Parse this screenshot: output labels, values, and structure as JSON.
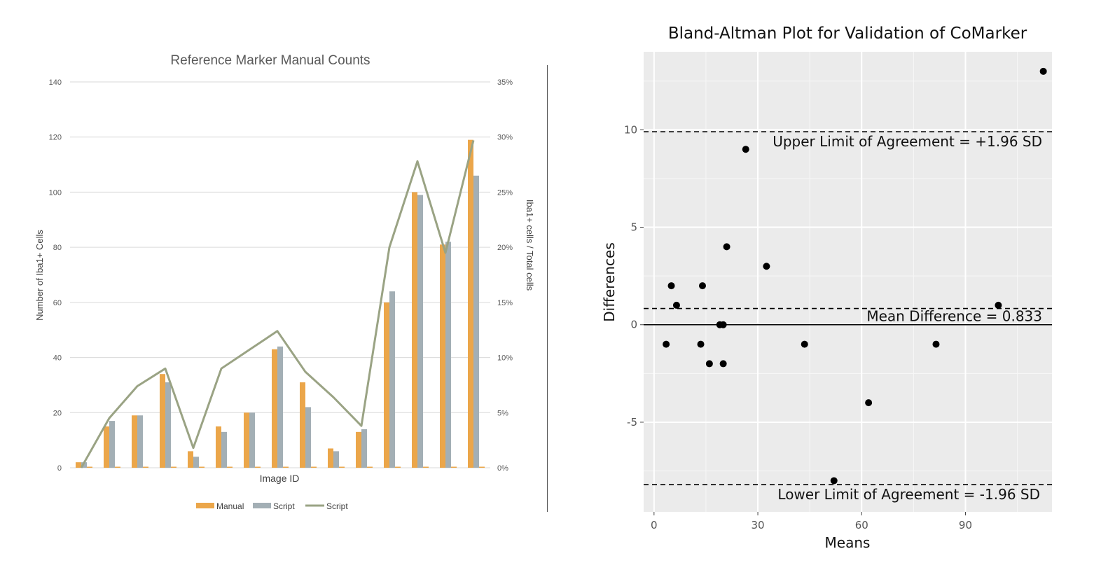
{
  "chart_data": [
    {
      "type": "bar",
      "title": "Reference Marker Manual Counts",
      "xlabel": "Image ID",
      "ylabel": "Number of Iba1+ Cells",
      "y2label": "Iba1+ cells / Total cells",
      "ylim": [
        0,
        140
      ],
      "y2lim": [
        0,
        0.35
      ],
      "yticks": [
        "0",
        "20",
        "40",
        "60",
        "80",
        "100",
        "120",
        "140"
      ],
      "y2ticks": [
        "0%",
        "5%",
        "10%",
        "15%",
        "20%",
        "25%",
        "30%",
        "35%"
      ],
      "grid": "horizontal",
      "legend_position": "bottom",
      "n_categories": 15,
      "series": [
        {
          "name": "Manual",
          "type": "bar",
          "color": "#eba64a",
          "values": [
            2,
            15,
            19,
            34,
            6,
            15,
            20,
            43,
            31,
            7,
            13,
            60,
            100,
            81,
            119
          ]
        },
        {
          "name": "Script",
          "type": "bar",
          "color": "#a3afb5",
          "values": [
            2,
            17,
            19,
            31,
            4,
            13,
            20,
            44,
            22,
            6,
            14,
            64,
            99,
            82,
            106
          ]
        },
        {
          "name": "Script",
          "type": "line",
          "axis": "secondary",
          "color": "#9aa384",
          "values": [
            0.0,
            0.045,
            0.074,
            0.09,
            0.018,
            0.09,
            0.107,
            0.124,
            0.087,
            0.064,
            0.038,
            0.2,
            0.278,
            0.195,
            0.297
          ]
        }
      ]
    },
    {
      "type": "scatter",
      "title": "Bland-Altman Plot for Validation of CoMarker",
      "xlabel": "Means",
      "ylabel": "Differences",
      "xlim": [
        -3,
        115
      ],
      "ylim": [
        -9.6,
        14.0
      ],
      "xticks": [
        0,
        30,
        60,
        90
      ],
      "yticks": [
        -5,
        0,
        5,
        10
      ],
      "ytick_labels": [
        "-5",
        "0",
        "5",
        "10"
      ],
      "grid": true,
      "points": [
        {
          "x": 3.5,
          "y": -1
        },
        {
          "x": 5,
          "y": 2
        },
        {
          "x": 6.5,
          "y": 1
        },
        {
          "x": 13.5,
          "y": -1
        },
        {
          "x": 14,
          "y": 2
        },
        {
          "x": 16,
          "y": -2
        },
        {
          "x": 19,
          "y": 0
        },
        {
          "x": 20,
          "y": 0
        },
        {
          "x": 20,
          "y": -2
        },
        {
          "x": 21,
          "y": 4
        },
        {
          "x": 26.5,
          "y": 9
        },
        {
          "x": 32.5,
          "y": 3
        },
        {
          "x": 43.5,
          "y": -1
        },
        {
          "x": 52,
          "y": -8
        },
        {
          "x": 62,
          "y": -4
        },
        {
          "x": 81.5,
          "y": -1
        },
        {
          "x": 99.5,
          "y": 1
        },
        {
          "x": 112.5,
          "y": 13
        }
      ],
      "lines": [
        {
          "label": "Upper Limit of Agreement = +1.96 SD",
          "y": 9.9,
          "style": "dashed"
        },
        {
          "label": "Mean Difference = 0.833",
          "y": 0.833,
          "style": "dashed"
        },
        {
          "label": "",
          "y": 0,
          "style": "solid"
        },
        {
          "label": "Lower Limit of Agreement = -1.96 SD",
          "y": -8.2,
          "style": "dashed"
        }
      ]
    }
  ]
}
